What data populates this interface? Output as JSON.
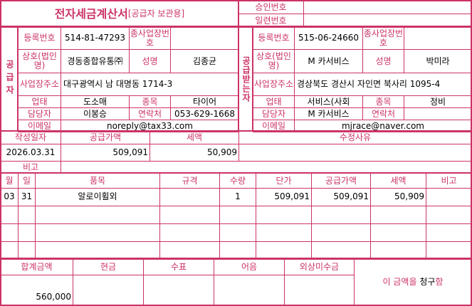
{
  "header": {
    "title": "전자세금계산서",
    "subtitle": "[공급자 보관용]",
    "approval_label": "승인번호",
    "approval_value": "",
    "serial_label": "일련번호",
    "serial_value": ""
  },
  "labels": {
    "reg_no": "등록번호",
    "sub_biz": "종사업장번호",
    "company": "상호(법인명)",
    "name": "성명",
    "address": "사업장주소",
    "biz_type": "업태",
    "item": "종목",
    "contact_person": "담당자",
    "phone": "연락처",
    "email": "이메일"
  },
  "supplier": {
    "section_label": "공급자",
    "reg_no": "514-81-47293",
    "sub_biz": "",
    "company": "경동종합유통㈜",
    "name": "김종균",
    "address": "대구광역시 남 대명동 1714-3",
    "biz_type": "도소매",
    "item": "타이어",
    "contact_person": "이봉승",
    "phone": "053-629-1668",
    "email": "noreply@tax33.com"
  },
  "receiver": {
    "section_label": "공급받는자",
    "reg_no": "515-06-24660",
    "sub_biz": "",
    "company": "M 카서비스",
    "name": "박미라",
    "address": "경상북도 경산시 자인면 북사리 1095-4",
    "biz_type": "서비스(사회",
    "item": "정비",
    "contact_person": "M 카서비스",
    "phone": "",
    "email": "mjrace@naver.com"
  },
  "summary": {
    "date_label": "작성일자",
    "supply_label": "공급가액",
    "tax_label": "세액",
    "reason_label": "수정사유",
    "date": "2026.03.31",
    "supply": "509,091",
    "tax": "50,909",
    "reason": "",
    "note_label": "비고",
    "note": ""
  },
  "items_header": {
    "month": "월",
    "day": "일",
    "name": "품목",
    "spec": "규격",
    "qty": "수량",
    "unit_price": "단가",
    "supply": "공급가액",
    "tax": "세액",
    "note": "비고"
  },
  "items": [
    {
      "month": "03",
      "day": "31",
      "name": "알로이휠외",
      "spec": "",
      "qty": "1",
      "unit_price": "509,091",
      "supply": "509,091",
      "tax": "50,909",
      "note": ""
    }
  ],
  "footer": {
    "total_label": "합계금액",
    "cash_label": "현금",
    "check_label": "수표",
    "note_label": "어음",
    "credit_label": "외상미수금",
    "total": "560,000",
    "cash": "",
    "check": "",
    "bill": "",
    "credit": "",
    "message_pre": "이 금액을 ",
    "message_hl": "청구",
    "message_post": "함"
  },
  "colors": {
    "accent": "#cc3366"
  }
}
